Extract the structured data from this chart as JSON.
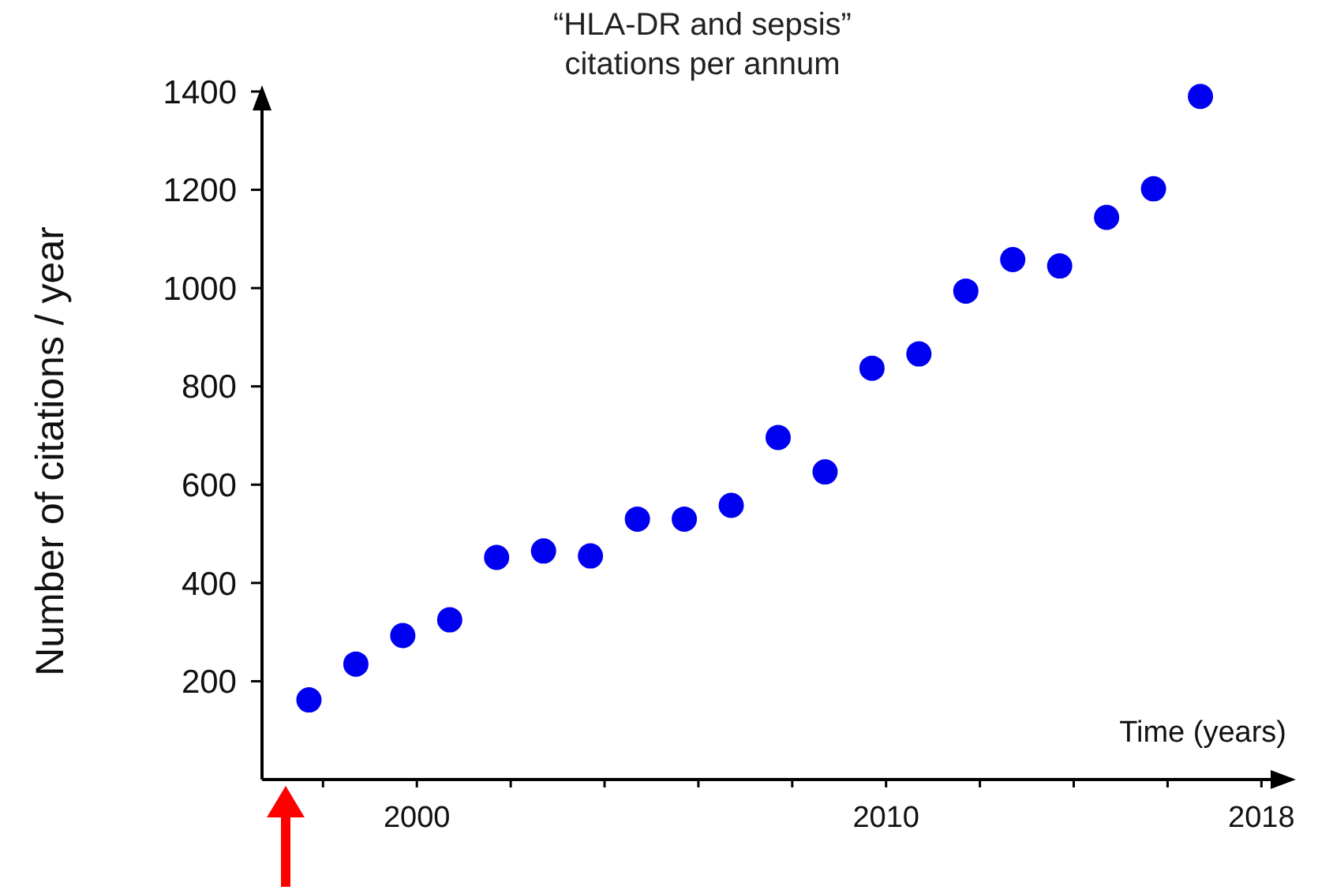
{
  "chart_data": {
    "type": "scatter",
    "title": "“HLA-DR and sepsis”",
    "subtitle": "citations per annum",
    "xlabel": "Time (years)",
    "ylabel": "Number of citations  / year",
    "x": [
      1997.7,
      1998.7,
      1999.7,
      2000.7,
      2001.7,
      2002.7,
      2003.7,
      2004.7,
      2005.7,
      2006.7,
      2007.7,
      2008.7,
      2009.7,
      2010.7,
      2011.7,
      2012.7,
      2013.7,
      2014.7,
      2015.7,
      2016.7
    ],
    "series": [
      {
        "color": "#0000f0",
        "values": [
          162,
          235,
          293,
          325,
          452,
          465,
          455,
          530,
          530,
          558,
          696,
          626,
          837,
          866,
          994,
          1058,
          1045,
          1144,
          1202,
          1390
        ]
      }
    ],
    "xlim": [
      1996.7,
      2018.6
    ],
    "ylim": [
      0,
      1400
    ],
    "xticks": [
      {
        "value": 1998,
        "label": null
      },
      2000,
      {
        "value": 2002,
        "label": null
      },
      {
        "value": 2004,
        "label": null
      },
      {
        "value": 2006,
        "label": null
      },
      {
        "value": 2008,
        "label": null
      },
      2010,
      {
        "value": 2012,
        "label": null
      },
      {
        "value": 2014,
        "label": null
      },
      {
        "value": 2016,
        "label": null
      },
      2018
    ],
    "yticks": [
      200,
      400,
      600,
      800,
      1000,
      1200,
      1400
    ],
    "marker": "circle",
    "grid": false
  }
}
